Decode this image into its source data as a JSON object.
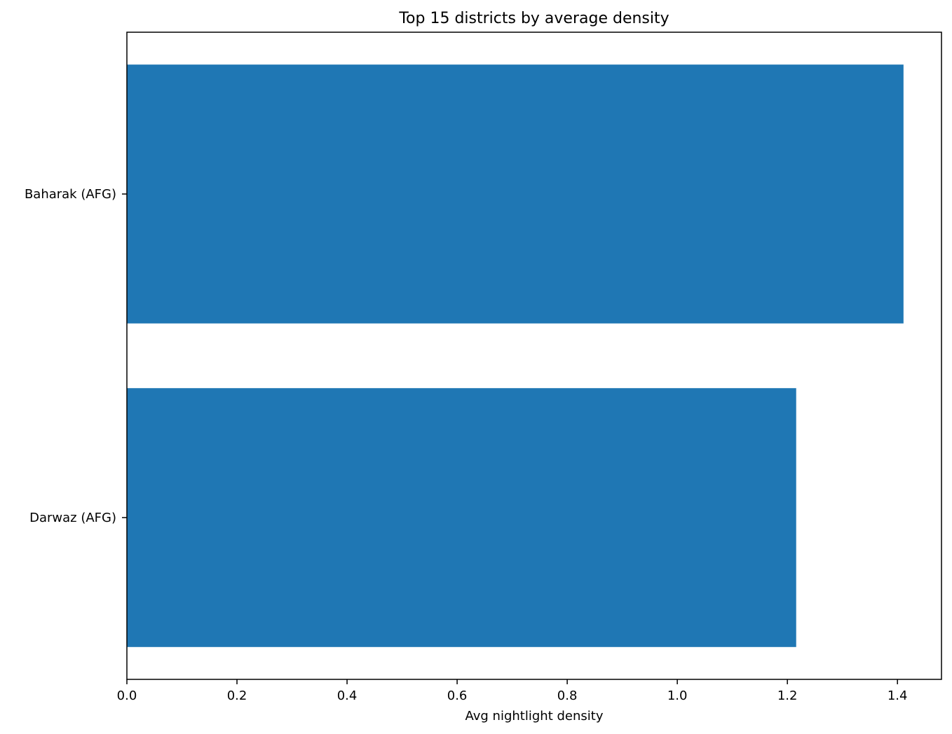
{
  "chart_data": {
    "type": "bar",
    "orientation": "horizontal",
    "title": "Top 15 districts by average density",
    "xlabel": "Avg nightlight density",
    "ylabel": "",
    "categories": [
      "Baharak (AFG)",
      "Darwaz (AFG)"
    ],
    "values": [
      1.411,
      1.216
    ],
    "xlim": [
      0,
      1.48
    ],
    "xticks": [
      "0.0",
      "0.2",
      "0.4",
      "0.6",
      "0.8",
      "1.0",
      "1.2",
      "1.4"
    ],
    "grid": false,
    "legend": "none",
    "bar_color": "#1f77b4"
  }
}
